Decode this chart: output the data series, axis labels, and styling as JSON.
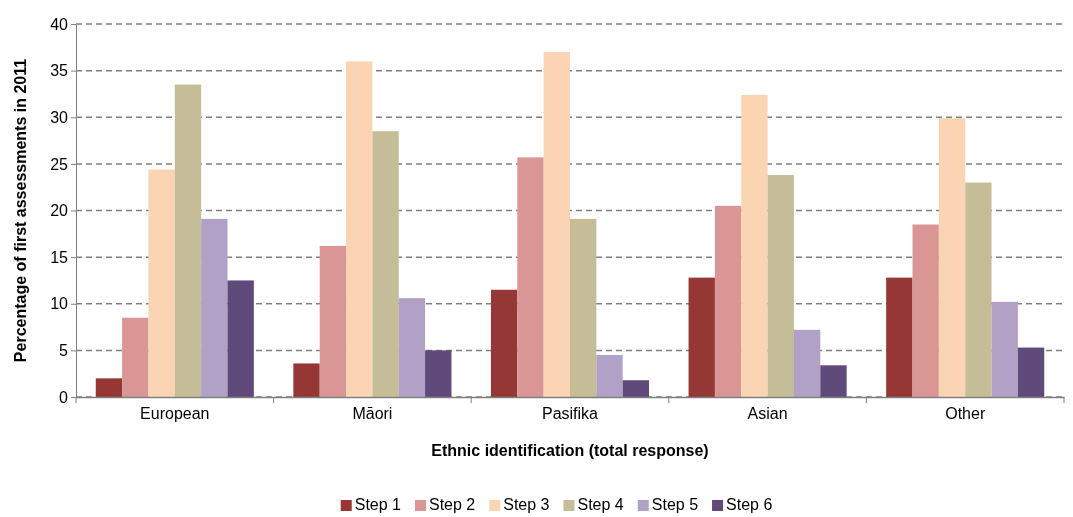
{
  "chart_data": {
    "type": "bar",
    "xlabel": "Ethnic identification (total response)",
    "ylabel": "Percentage of first assessments in 2011",
    "categories": [
      "European",
      "Māori",
      "Pasifika",
      "Asian",
      "Other"
    ],
    "series": [
      {
        "name": "Step 1",
        "color": "#953735",
        "values": [
          2.0,
          3.6,
          11.5,
          12.8,
          12.8
        ]
      },
      {
        "name": "Step 2",
        "color": "#d99694",
        "values": [
          8.5,
          16.2,
          25.7,
          20.5,
          18.5
        ]
      },
      {
        "name": "Step 3",
        "color": "#fad4b3",
        "values": [
          24.4,
          36.0,
          37.0,
          32.4,
          29.9
        ]
      },
      {
        "name": "Step 4",
        "color": "#c4bd97",
        "values": [
          33.5,
          28.5,
          19.1,
          23.8,
          23.0
        ]
      },
      {
        "name": "Step 5",
        "color": "#b2a1c7",
        "values": [
          19.1,
          10.6,
          4.5,
          7.2,
          10.2
        ]
      },
      {
        "name": "Step 6",
        "color": "#604a7b",
        "values": [
          12.5,
          5.0,
          1.8,
          3.4,
          5.3
        ]
      }
    ],
    "ylim": [
      0,
      40
    ],
    "yticks": [
      0,
      5,
      10,
      15,
      20,
      25,
      30,
      35,
      40
    ],
    "grid": "y",
    "legend": "bottom"
  }
}
